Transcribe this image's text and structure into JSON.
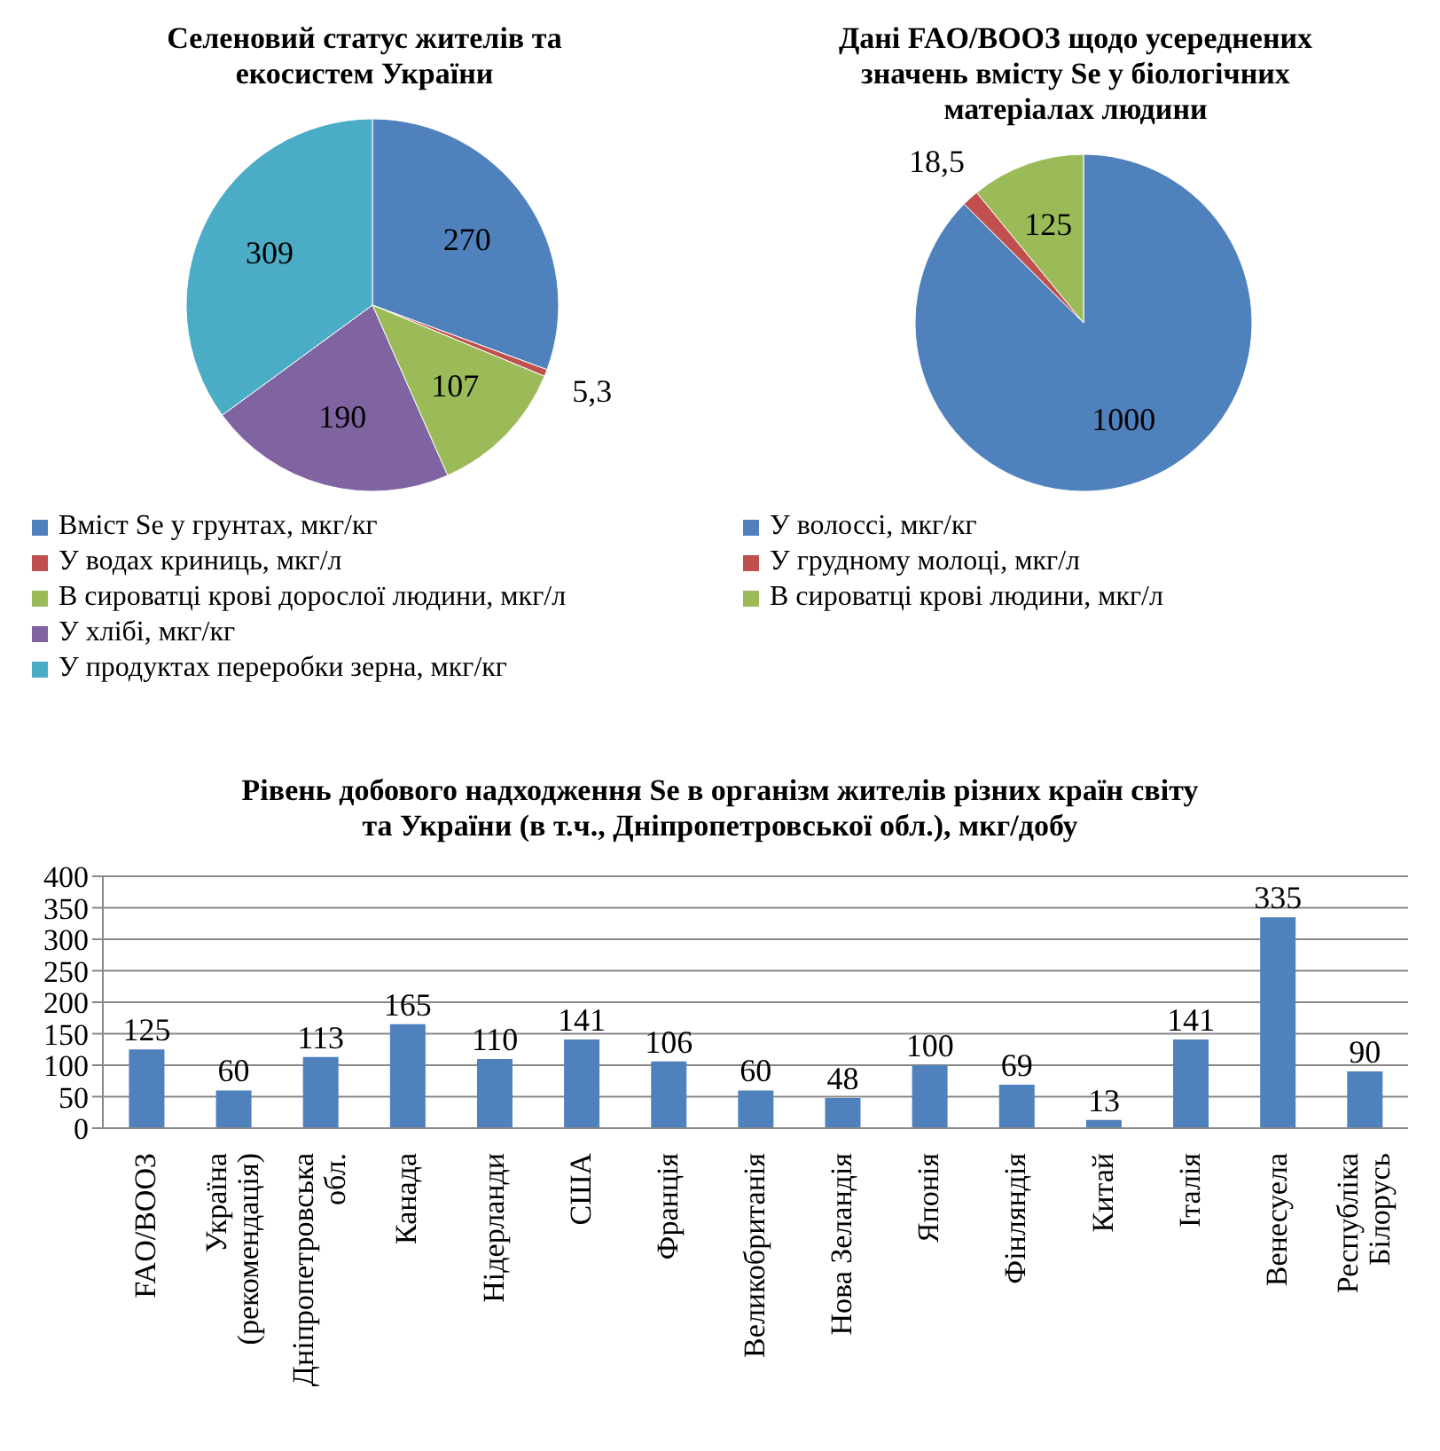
{
  "chart_data": [
    {
      "type": "pie",
      "title": "Селеновий статус жителів та екосистем України",
      "categories": [
        "Вміст Se у грунтах, мкг/кг",
        "У водах криниць, мкг/л",
        "В сироватці крові дорослої людини, мкг/л",
        "У хлібі, мкг/кг",
        "У продуктах переробки зерна, мкг/кг"
      ],
      "values": [
        270,
        5.3,
        107,
        190,
        309
      ],
      "value_labels": [
        "270",
        "5,3",
        "107",
        "190",
        "309"
      ],
      "colors": [
        "#4f81bd",
        "#c0504d",
        "#9bbb59",
        "#8064a2",
        "#4bacc6"
      ],
      "legend": "bottom"
    },
    {
      "type": "pie",
      "title": "Дані FAO/ВООЗ щодо усереднених значень вмісту Se у біологічних матеріалах людини",
      "categories": [
        "У волоссі, мкг/кг",
        "У грудному молоці, мкг/л",
        "В сироватці крові людини, мкг/л"
      ],
      "values": [
        1000,
        18.5,
        125
      ],
      "value_labels": [
        "1000",
        "18,5",
        "125"
      ],
      "colors": [
        "#4f81bd",
        "#c0504d",
        "#9bbb59"
      ],
      "legend": "bottom"
    },
    {
      "type": "bar",
      "title": "Рівень добового надходження Se в організм жителів різних країн світу та України (в т.ч., Дніпропетровської обл.), мкг/добу",
      "categories": [
        "FAO/ВООЗ",
        "Україна (рекомендація)",
        "Дніпропетровська обл.",
        "Канада",
        "Нідерланди",
        "США",
        "Франція",
        "Великобританія",
        "Нова Зеландія",
        "Японія",
        "Фінляндія",
        "Китай",
        "Італія",
        "Венесуела",
        "Республіка Білорусь"
      ],
      "values": [
        125,
        60,
        113,
        165,
        110,
        141,
        106,
        60,
        48,
        100,
        69,
        13,
        141,
        335,
        90
      ],
      "color": "#4f81bd",
      "ylim": [
        0,
        400
      ],
      "yticks": [
        0,
        50,
        100,
        150,
        200,
        250,
        300,
        350,
        400
      ],
      "grid": "y",
      "data_labels": true
    }
  ]
}
